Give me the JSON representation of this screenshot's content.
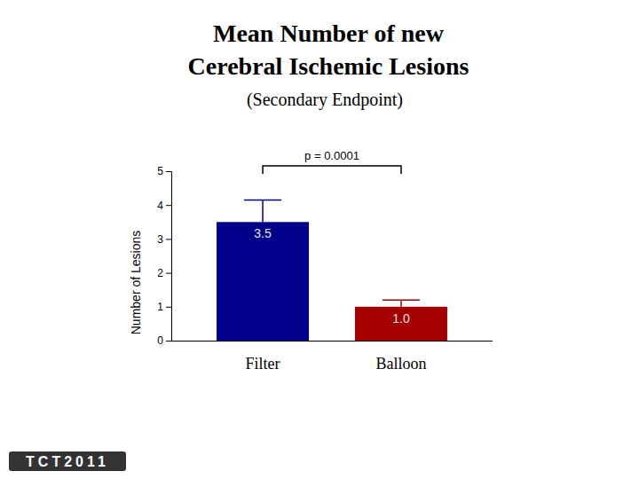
{
  "chart_data": {
    "type": "bar",
    "title": "Mean Number of new Cerebral Ischemic Lesions",
    "subtitle": "(Secondary Endpoint)",
    "y_label": "Number of Lesions",
    "annotation": "p = 0.0001",
    "footer": "TCT2011",
    "categories": [
      "Filter",
      "Balloon"
    ],
    "values": [
      3.5,
      1.0
    ],
    "value_labels": [
      "3.5",
      "1.0"
    ],
    "errors": [
      0.65,
      0.2
    ],
    "colors": [
      "#00008b",
      "#a50000"
    ],
    "ylim": [
      0,
      5
    ],
    "yticks": [
      0,
      1,
      2,
      3,
      4,
      5
    ],
    "grid": false,
    "data_labels": true
  }
}
